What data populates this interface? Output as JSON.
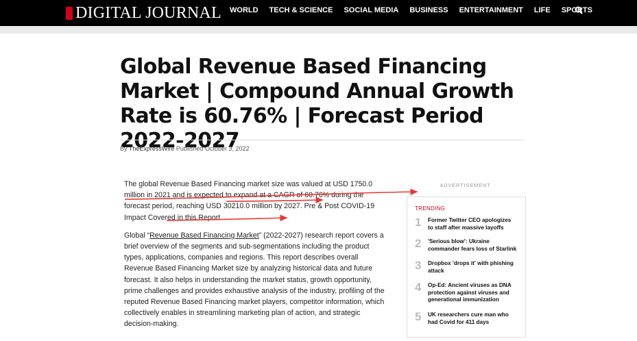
{
  "header": {
    "logo_text": "DIGITAL JOURNAL",
    "nav": [
      "WORLD",
      "TECH & SCIENCE",
      "SOCIAL MEDIA",
      "BUSINESS",
      "ENTERTAINMENT",
      "LIFE",
      "SPORTS"
    ],
    "search_icon": "search-icon",
    "accent_color": "#d0021b"
  },
  "article": {
    "title": "Global Revenue Based Financing Market | Compound Annual Growth Rate is 60.76% | Forecast Period 2022-2027",
    "byline": {
      "by_label": "By",
      "author": "TheExpressWire",
      "published_label": "Published",
      "date": "October 3, 2022"
    },
    "para1": "The global Revenue Based Financing market size was valued at USD 1750.0 million in 2021 and is expected to expand at a CAGR of 60.76% during the forecast period, reaching USD 30210.0 million by 2027. Pre & Post COVID-19 Impact Covered in this Report.",
    "para2_before": "Global “",
    "para2_link": "Revenue Based Financing Market",
    "para2_after": "” (2022-2027) research report covers a brief overview of the segments and sub-segmentations including the product types, applications, companies and regions. This report describes overall Revenue Based Financing Market size by analyzing historical data and future forecast. It also helps in understanding the market status, growth opportunity, prime challenges and provides exhaustive analysis of the industry, profiling of the reputed Revenue Based Financing market players, competitor information, which collectively enables in streamlining marketing plan of action, and strategic decision-making."
  },
  "sidebar": {
    "ad_label": "ADVERTISEMENT",
    "trending_title": "TRENDING",
    "items": [
      {
        "num": "1",
        "title": "Former Twitter CEO apologizes to staff after massive layoffs"
      },
      {
        "num": "2",
        "title": "'Serious blow': Ukraine commander fears loss of Starlink"
      },
      {
        "num": "3",
        "title": "Dropbox 'drops it' with phishing attack"
      },
      {
        "num": "4",
        "title": "Op-Ed: Ancient viruses as DNA protection against viruses and generational immunization"
      },
      {
        "num": "5",
        "title": "UK researchers cure man who had Covid for 411 days"
      }
    ]
  },
  "annotation_color": "#e53935"
}
